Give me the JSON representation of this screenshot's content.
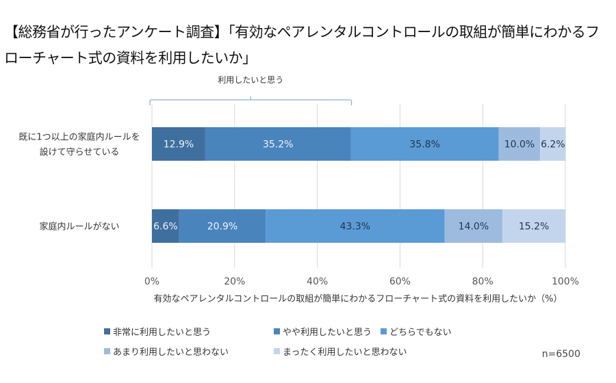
{
  "title": "【総務省が行ったアンケート調査】「有効なペアレンタルコントロールの取組が簡単にわかるフローチャート式の資料を利用したいか」",
  "chart_data": {
    "type": "bar",
    "orientation": "horizontal",
    "stacked": true,
    "title": "【総務省が行ったアンケート調査】「有効なペアレンタルコントロールの取組が簡単にわかるフローチャート式の資料を利用したいか」",
    "categories": [
      "既に1つ以上の家庭内ルールを設けて守らせている",
      "家庭内ルールがない"
    ],
    "category_lines": [
      [
        "既に1つ以上の家庭内ルールを",
        "設けて守らせている"
      ],
      [
        "家庭内ルールがない"
      ]
    ],
    "series": [
      {
        "name": "非常に利用したいと思う",
        "color": "#3f6f9e",
        "label_style": "light",
        "values": [
          12.9,
          6.6
        ],
        "labels": [
          "12.9%",
          "6.6%"
        ]
      },
      {
        "name": "やや利用したいと思う",
        "color": "#4a84bd",
        "label_style": "light",
        "values": [
          35.2,
          20.9
        ],
        "labels": [
          "35.2%",
          "20.9%"
        ]
      },
      {
        "name": "どちらでもない",
        "color": "#5b9bd5",
        "label_style": "dark",
        "values": [
          35.8,
          43.3
        ],
        "labels": [
          "35.8%",
          "43.3%"
        ]
      },
      {
        "name": "あまり利用したいと思わない",
        "color": "#9dbbdf",
        "label_style": "dark",
        "values": [
          10.0,
          14.0
        ],
        "labels": [
          "10.0%",
          "14.0%"
        ]
      },
      {
        "name": "まったく利用したいと思わない",
        "color": "#c3d5ec",
        "label_style": "dark",
        "values": [
          6.2,
          15.2
        ],
        "labels": [
          "6.2%",
          "15.2%"
        ]
      }
    ],
    "xlim": [
      0,
      100
    ],
    "xticks": [
      0,
      20,
      40,
      60,
      80,
      100
    ],
    "xtick_labels": [
      "0%",
      "20%",
      "40%",
      "60%",
      "80%",
      "100%"
    ],
    "xlabel": "有効なペアレンタルコントロールの取組が簡単にわかるフローチャート式の資料を利用したいか（%）",
    "ylabel": "",
    "grid": "vertical",
    "legend_position": "bottom",
    "annotation": {
      "text": "利用したいと思う",
      "type": "bracket",
      "range": [
        0,
        48.1
      ]
    },
    "note": "n=6500"
  }
}
